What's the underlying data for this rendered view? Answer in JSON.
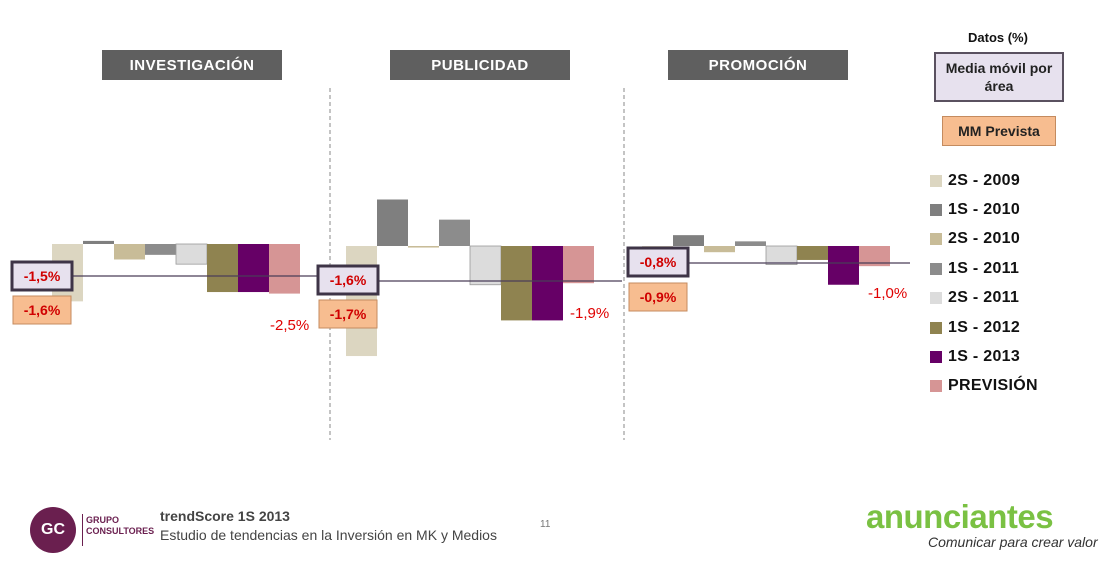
{
  "chart_data": {
    "type": "bar",
    "units_label": "Datos (%)",
    "legend_title": "Media móvil por área",
    "forecast_box_label": "MM Prevista",
    "series": [
      {
        "name": "2S - 2009",
        "color": "#dcd6c1"
      },
      {
        "name": "1S - 2010",
        "color": "#7f7f7f"
      },
      {
        "name": "2S - 2010",
        "color": "#c8bc98"
      },
      {
        "name": "1S - 2011",
        "color": "#8c8c8c"
      },
      {
        "name": "2S - 2011",
        "color": "#dcdcdc"
      },
      {
        "name": "1S - 2012",
        "color": "#8f8350"
      },
      {
        "name": "1S - 2013",
        "color": "#660066"
      },
      {
        "name": "PREVISIÓN",
        "color": "#d69595"
      }
    ],
    "panels": [
      {
        "title": "INVESTIGACIÓN",
        "values": [
          -3.7,
          0.2,
          -1.0,
          -0.7,
          -1.3,
          -3.1,
          -3.1,
          -3.2
        ],
        "moving_average": "-1,5%",
        "forecast_average": "-1,6%",
        "forecast_label": "-2,5%"
      },
      {
        "title": "PUBLICIDAD",
        "values": [
          -7.1,
          3.0,
          -0.1,
          1.7,
          -2.5,
          -4.8,
          -4.8,
          -2.4
        ],
        "moving_average": "-1,6%",
        "forecast_average": "-1,7%",
        "forecast_label": "-1,9%"
      },
      {
        "title": "PROMOCIÓN",
        "values": [
          0.0,
          0.7,
          -0.4,
          0.3,
          -1.2,
          -0.9,
          -2.5,
          -1.3
        ],
        "moving_average": "-0,8%",
        "forecast_average": "-0,9%",
        "forecast_label": "-1,0%"
      }
    ]
  },
  "footer": {
    "logo_initials": "GC",
    "logo_brand_line1": "GRUPO",
    "logo_brand_line2": "CONSULTORES",
    "title": "trendScore 1S 2013",
    "subtitle": "Estudio de tendencias en la Inversión en MK y Medios",
    "page_number": "11",
    "brand": "anunciantes",
    "tagline": "Comunicar para crear valor"
  }
}
